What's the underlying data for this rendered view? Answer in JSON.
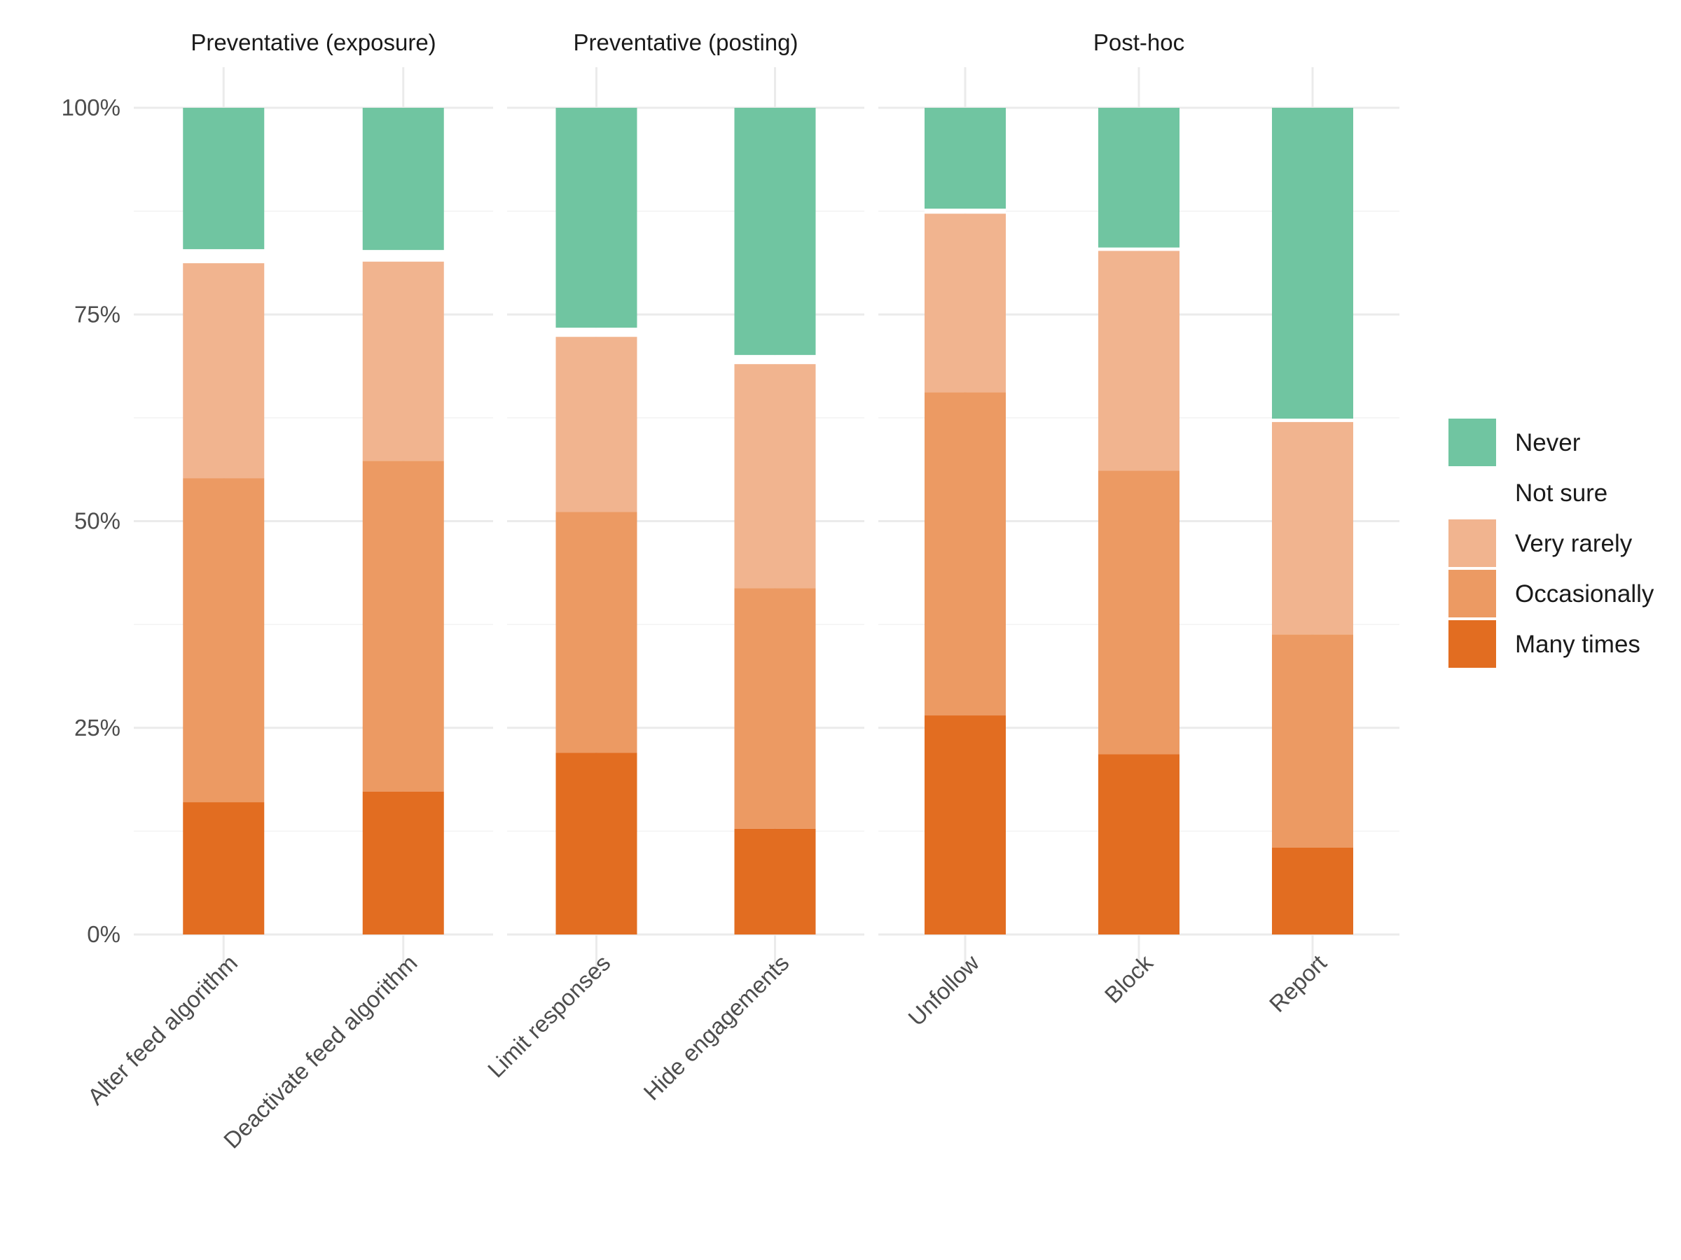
{
  "chart_data": {
    "type": "bar",
    "stacked": true,
    "percent": true,
    "ylim": [
      0,
      100
    ],
    "y_ticks": [
      "0%",
      "25%",
      "50%",
      "75%",
      "100%"
    ],
    "y_tick_values": [
      0,
      25,
      50,
      75,
      100
    ],
    "grid": true,
    "legend_position": "right",
    "series": [
      {
        "name": "Never",
        "color": "#70c5a1"
      },
      {
        "name": "Not sure",
        "color": "#ffffff"
      },
      {
        "name": "Very rarely",
        "color": "#f1b48f"
      },
      {
        "name": "Occasionally",
        "color": "#ec9a63"
      },
      {
        "name": "Many times",
        "color": "#e26d21"
      }
    ],
    "facets": [
      {
        "title": "Preventative (exposure)",
        "categories": [
          "Alter feed algorithm",
          "Deactivate feed algorithm"
        ],
        "values": {
          "Many times": [
            16.0,
            17.3
          ],
          "Occasionally": [
            39.2,
            40.0
          ],
          "Very rarely": [
            26.0,
            24.1
          ],
          "Not sure": [
            1.7,
            1.4
          ],
          "Never": [
            17.1,
            17.2
          ]
        }
      },
      {
        "title": "Preventative (posting)",
        "categories": [
          "Limit responses",
          "Hide engagements"
        ],
        "values": {
          "Many times": [
            22.0,
            12.8
          ],
          "Occasionally": [
            29.1,
            29.1
          ],
          "Very rarely": [
            21.2,
            27.1
          ],
          "Not sure": [
            1.1,
            1.1
          ],
          "Never": [
            26.6,
            29.9
          ]
        }
      },
      {
        "title": "Post-hoc",
        "categories": [
          "Unfollow",
          "Block",
          "Report"
        ],
        "values": {
          "Many times": [
            26.5,
            21.8,
            10.5
          ],
          "Occasionally": [
            39.1,
            34.3,
            25.8
          ],
          "Very rarely": [
            21.6,
            26.6,
            25.7
          ],
          "Not sure": [
            0.6,
            0.4,
            0.4
          ],
          "Never": [
            12.2,
            16.9,
            37.6
          ]
        }
      }
    ]
  }
}
